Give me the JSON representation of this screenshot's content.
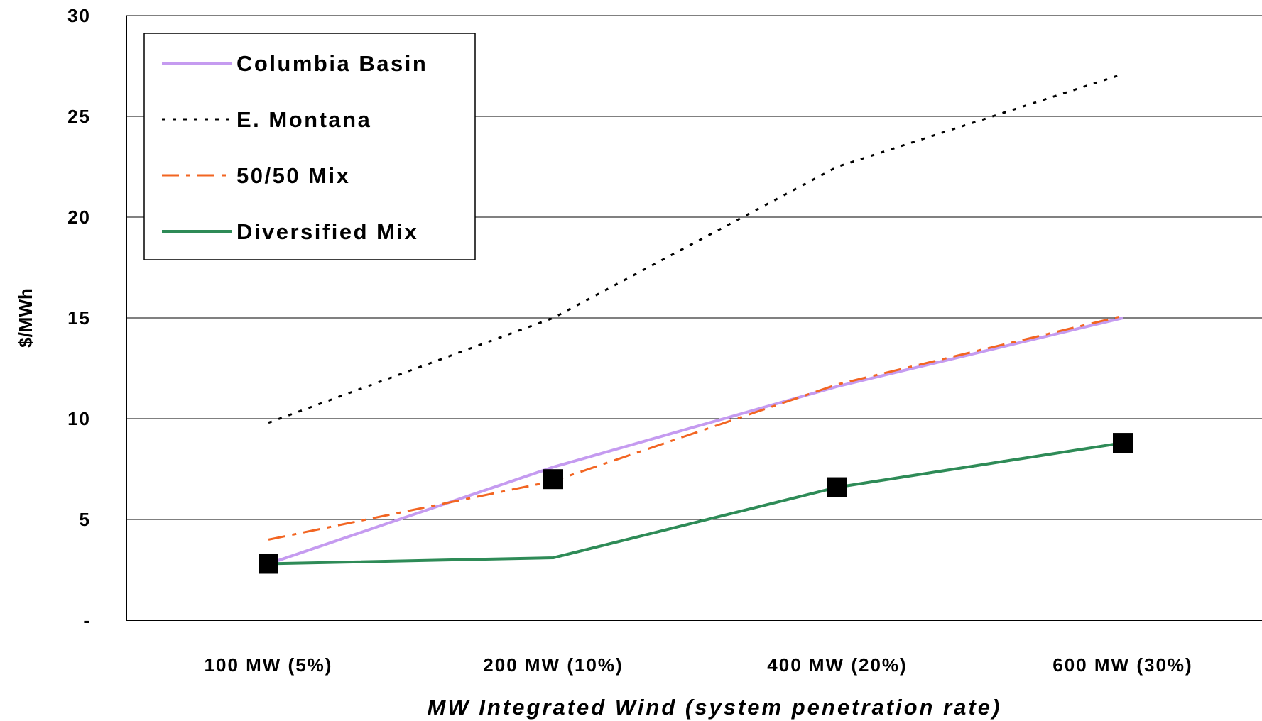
{
  "chart_data": {
    "type": "line",
    "title": "",
    "xlabel": "MW Integrated Wind (system penetration rate)",
    "ylabel": "$/MWh",
    "categories": [
      "100 MW (5%)",
      "200 MW (10%)",
      "400 MW (20%)",
      "600 MW (30%)"
    ],
    "ylim": [
      0,
      30
    ],
    "yticks": [
      {
        "value": 0,
        "label": "-"
      },
      {
        "value": 5,
        "label": "5"
      },
      {
        "value": 10,
        "label": "10"
      },
      {
        "value": 15,
        "label": "15"
      },
      {
        "value": 20,
        "label": "20"
      },
      {
        "value": 25,
        "label": "25"
      },
      {
        "value": 30,
        "label": "30"
      }
    ],
    "grid": true,
    "legend_position": "top-left",
    "series": [
      {
        "name": "Columbia Basin",
        "values": [
          2.8,
          7.6,
          11.6,
          15.0
        ],
        "color": "#C59BF0",
        "style": "solid",
        "marker": "none"
      },
      {
        "name": "E. Montana",
        "values": [
          9.8,
          15.0,
          22.5,
          27.1
        ],
        "color": "#000000",
        "style": "dotted",
        "marker": "none"
      },
      {
        "name": "50/50 Mix",
        "values": [
          4.0,
          6.9,
          11.7,
          15.1
        ],
        "color": "#F26522",
        "style": "dashdot",
        "marker": "none"
      },
      {
        "name": "Diversified Mix",
        "values": [
          2.8,
          3.1,
          6.6,
          8.8
        ],
        "color": "#2E8B57",
        "style": "solid",
        "marker": "none"
      },
      {
        "name": "",
        "values": [
          2.8,
          7.0,
          6.6,
          8.8
        ],
        "color": "#000000",
        "style": "none",
        "marker": "square"
      }
    ]
  }
}
